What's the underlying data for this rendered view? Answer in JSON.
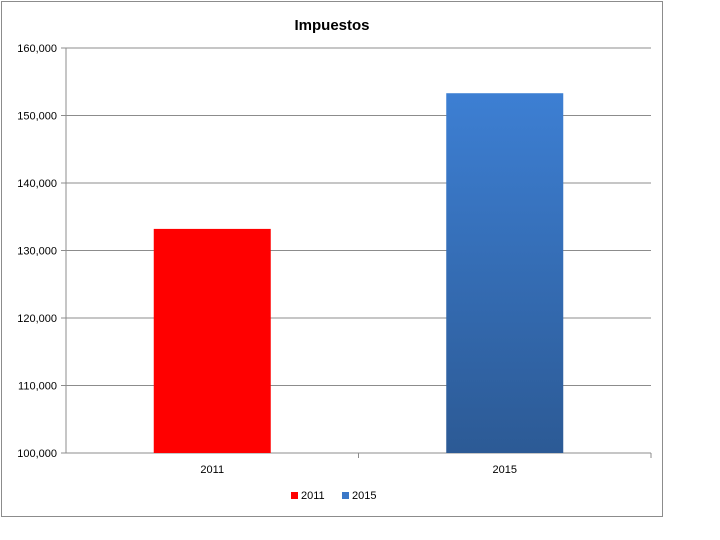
{
  "chart_data": {
    "type": "bar",
    "title": "Impuestos",
    "categories": [
      "2011",
      "2015"
    ],
    "series": [
      {
        "name": "2011",
        "values": [
          133200,
          null
        ],
        "color": "#ff0000"
      },
      {
        "name": "2015",
        "values": [
          null,
          153300
        ],
        "color": "#3a78c8"
      }
    ],
    "ylim": [
      100000,
      160000
    ],
    "ytick_step": 10000,
    "ytick_labels": [
      "100,000",
      "110,000",
      "120,000",
      "130,000",
      "140,000",
      "150,000",
      "160,000"
    ],
    "grid": true,
    "legend": "bottom"
  }
}
